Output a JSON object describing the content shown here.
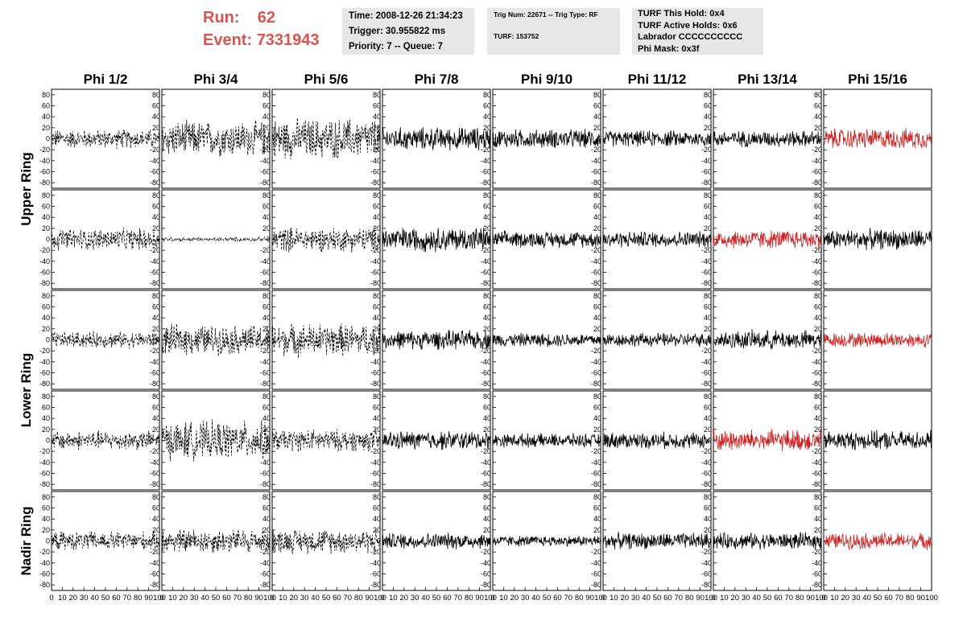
{
  "header": {
    "run_label": "Run:",
    "run_value": "62",
    "event_label": "Event:",
    "event_value": "7331943",
    "time": "Time: 2008-12-26 21:34:23",
    "trigger": "Trigger: 30.955822 ms",
    "priority": "Priority: 7 -- Queue: 7",
    "trig_num": "Trig Num: 22671 -- Trig Type: RF",
    "turf": "TURF: 153752",
    "turf_this_hold": "TURF This Hold: 0x4",
    "turf_active_holds": "TURF Active Holds: 0x6",
    "labrador": "Labrador CCCCCCCCCC",
    "phi_mask": "Phi Mask: 0x3f"
  },
  "colors": {
    "run_text": "#d9534f",
    "trace_black": "#000000",
    "trace_red": "#cc2222",
    "info_bg": "#e7e7e7"
  },
  "chart_data": {
    "type": "line",
    "columns": [
      "Phi 1/2",
      "Phi 3/4",
      "Phi 5/6",
      "Phi 7/8",
      "Phi 9/10",
      "Phi 11/12",
      "Phi 13/14",
      "Phi 15/16"
    ],
    "row_labels": [
      "Upper Ring",
      "Lower Ring",
      "Nadir Ring"
    ],
    "xlim": [
      0,
      100
    ],
    "ylim": [
      -90,
      90
    ],
    "x_ticks": [
      0,
      10,
      20,
      30,
      40,
      50,
      60,
      70,
      80,
      90,
      100
    ],
    "y_ticks": [
      -80,
      -60,
      -40,
      -20,
      0,
      20,
      40,
      60,
      80
    ],
    "panel_style": [
      [
        "dashed",
        "dashed",
        "dashed",
        "solid",
        "solid",
        "solid",
        "solid",
        "red"
      ],
      [
        "dashed",
        "dashed",
        "dashed",
        "solid",
        "solid",
        "solid",
        "red",
        "solid"
      ],
      [
        "dashed",
        "dashed",
        "dashed",
        "solid",
        "solid",
        "solid",
        "solid",
        "red"
      ],
      [
        "dashed",
        "dashed",
        "dashed",
        "solid",
        "solid",
        "solid",
        "red",
        "solid"
      ],
      [
        "dashed",
        "dashed",
        "dashed",
        "solid",
        "solid",
        "solid",
        "solid",
        "red"
      ]
    ],
    "panel_amplitude": [
      [
        14,
        26,
        30,
        17,
        14,
        12,
        12,
        15
      ],
      [
        16,
        3,
        18,
        18,
        12,
        12,
        14,
        15
      ],
      [
        12,
        22,
        24,
        14,
        10,
        10,
        14,
        11
      ],
      [
        14,
        28,
        16,
        14,
        10,
        12,
        16,
        14
      ],
      [
        14,
        18,
        18,
        12,
        8,
        12,
        12,
        12
      ]
    ]
  }
}
